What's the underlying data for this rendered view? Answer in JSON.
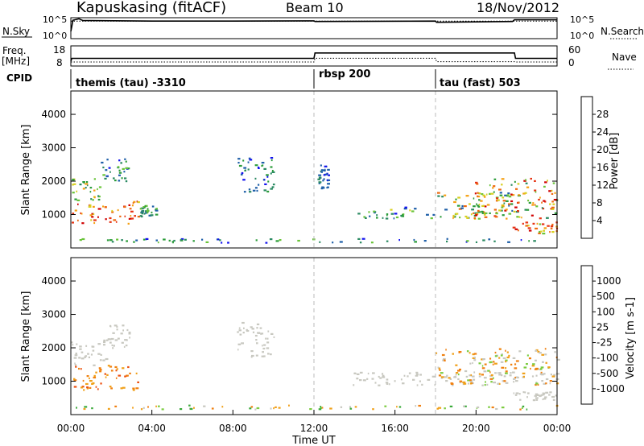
{
  "header": {
    "station": "Kapuskasing (fitACF)",
    "beam": "Beam 10",
    "date": "18/Nov/2012"
  },
  "chart_data": [
    {
      "type": "line",
      "panel": "nsky",
      "ylabel_left": "N.Sky",
      "ylabel_right": "N.Search",
      "y_ticks_left": [
        "10^5",
        "10^0"
      ],
      "y_ticks_right": [
        "10^5",
        "10^0"
      ],
      "series": [
        {
          "name": "N.Sky",
          "style": "solid",
          "x_hours": [
            0,
            0.05,
            0.1,
            0.4,
            0.6,
            1,
            4,
            8,
            12,
            12.05,
            18,
            18.05,
            21.8,
            21.9,
            24
          ],
          "level": [
            0.35,
            0.6,
            0.88,
            0.95,
            0.86,
            0.86,
            0.84,
            0.84,
            0.85,
            0.82,
            0.84,
            0.78,
            0.82,
            0.9,
            0.9
          ]
        },
        {
          "name": "N.Search",
          "style": "dotted",
          "x_hours": [
            0,
            24
          ],
          "level": [
            0.84,
            0.84
          ]
        }
      ]
    },
    {
      "type": "line",
      "panel": "freq",
      "ylabel_left": [
        "Freq.",
        "[MHz]"
      ],
      "ylabel_right": "Nave",
      "y_ticks_left": [
        "18",
        "8"
      ],
      "y_ticks_right": [
        "60",
        "0"
      ],
      "ylim_left": [
        8,
        18
      ],
      "ylim_right": [
        0,
        60
      ],
      "series": [
        {
          "name": "Freq",
          "style": "solid",
          "axis": "left",
          "x_hours": [
            0,
            0.05,
            12,
            12.05,
            21.9,
            21.95,
            24
          ],
          "y": [
            10.5,
            11.8,
            11.8,
            14.5,
            14.5,
            11.8,
            11.8
          ]
        },
        {
          "name": "Nave",
          "style": "dotted",
          "axis": "right",
          "x_hours": [
            0,
            12,
            12.05,
            18,
            18.05,
            21.9,
            22,
            24
          ],
          "y": [
            12,
            12,
            23,
            23,
            13,
            13,
            12,
            12
          ]
        }
      ]
    },
    {
      "type": "table",
      "panel": "cpid",
      "label": "CPID",
      "segments": [
        {
          "start_hour": 0,
          "text": "themis (tau) -3310"
        },
        {
          "start_hour": 12,
          "text": "rbsp 200"
        },
        {
          "start_hour": 18,
          "text": "tau (fast) 503"
        }
      ]
    },
    {
      "type": "heatmap",
      "panel": "power",
      "ylabel": "Slant Range [km]",
      "y_ticks": [
        1000,
        2000,
        3000,
        4000
      ],
      "ylim": [
        0,
        4700
      ],
      "xlim": [
        0,
        24
      ],
      "colorbar": {
        "label": "Power [dB]",
        "ticks": [
          "4",
          "8",
          "12",
          "16",
          "20",
          "24",
          "28"
        ],
        "colors": [
          "#1212ee",
          "#1e5fa8",
          "#2b8a62",
          "#2c9c3a",
          "#6ac43a",
          "#d8d020",
          "#f5a012",
          "#ee6a10",
          "#e63414",
          "#d00000"
        ]
      },
      "regions": [
        {
          "t": [
            0,
            3.3
          ],
          "r": [
            750,
            1450
          ],
          "level": [
            0.55,
            1.0
          ]
        },
        {
          "t": [
            0,
            1.5
          ],
          "r": [
            1450,
            2100
          ],
          "level": [
            0.2,
            0.7
          ]
        },
        {
          "t": [
            1.4,
            2.8
          ],
          "r": [
            2000,
            2700
          ],
          "level": [
            0.05,
            0.45
          ]
        },
        {
          "t": [
            3.4,
            4.2
          ],
          "r": [
            950,
            1300
          ],
          "level": [
            0.1,
            0.5
          ]
        },
        {
          "t": [
            8.1,
            10.0
          ],
          "r": [
            1700,
            2800
          ],
          "level": [
            0.05,
            0.4
          ]
        },
        {
          "t": [
            12.1,
            12.7
          ],
          "r": [
            1800,
            2500
          ],
          "level": [
            0.05,
            0.3
          ]
        },
        {
          "t": [
            14.0,
            18.0
          ],
          "r": [
            900,
            1250
          ],
          "level": [
            0.05,
            0.55
          ]
        },
        {
          "t": [
            18.0,
            21.8
          ],
          "r": [
            900,
            1700
          ],
          "level": [
            0.1,
            0.8
          ]
        },
        {
          "t": [
            19.8,
            24.0
          ],
          "r": [
            900,
            2100
          ],
          "level": [
            0.25,
            1.0
          ]
        },
        {
          "t": [
            21.8,
            24.0
          ],
          "r": [
            450,
            800
          ],
          "level": [
            0.45,
            0.95
          ]
        },
        {
          "t": [
            0,
            24.0
          ],
          "r": [
            180,
            300
          ],
          "level": [
            0.05,
            0.5
          ]
        }
      ]
    },
    {
      "type": "heatmap",
      "panel": "velocity",
      "ylabel": "Slant Range [km]",
      "y_ticks": [
        1000,
        2000,
        3000,
        4000
      ],
      "ylim": [
        0,
        4700
      ],
      "xlim": [
        0,
        24
      ],
      "x_ticks": [
        "00:00",
        "04:00",
        "08:00",
        "12:00",
        "16:00",
        "20:00",
        "00:00"
      ],
      "xlabel": "Time UT",
      "colorbar": {
        "label": "Velocity [m s-1]",
        "ticks": [
          "1000",
          "500",
          "100",
          "25",
          "-25",
          "-100",
          "-500",
          "-1000"
        ],
        "colors": [
          "#1a3fb0",
          "#2a6aa0",
          "#2c8c6c",
          "#3aaa3a",
          "#7ccc40",
          "#c8c8c0",
          "#f0a018",
          "#f08010",
          "#ec5010",
          "#e02010"
        ]
      },
      "regions": [
        {
          "t": [
            0,
            3.3
          ],
          "r": [
            750,
            1500
          ],
          "level": [
            0.6,
            0.85
          ]
        },
        {
          "t": [
            0,
            1.7
          ],
          "r": [
            1500,
            2200
          ],
          "level": [
            0.5,
            0.52
          ]
        },
        {
          "t": [
            1.5,
            3.0
          ],
          "r": [
            2000,
            2700
          ],
          "level": [
            0.5,
            0.52
          ]
        },
        {
          "t": [
            8.1,
            10.0
          ],
          "r": [
            1700,
            2800
          ],
          "level": [
            0.5,
            0.52
          ]
        },
        {
          "t": [
            13.8,
            24.0
          ],
          "r": [
            900,
            1300
          ],
          "level": [
            0.5,
            0.52
          ]
        },
        {
          "t": [
            18.0,
            24.0
          ],
          "r": [
            900,
            2000
          ],
          "level": [
            0.4,
            0.8
          ]
        },
        {
          "t": [
            21.8,
            24.0
          ],
          "r": [
            450,
            700
          ],
          "level": [
            0.5,
            0.52
          ]
        },
        {
          "t": [
            0,
            24.0
          ],
          "r": [
            180,
            300
          ],
          "level": [
            0.3,
            0.8
          ]
        }
      ]
    }
  ]
}
